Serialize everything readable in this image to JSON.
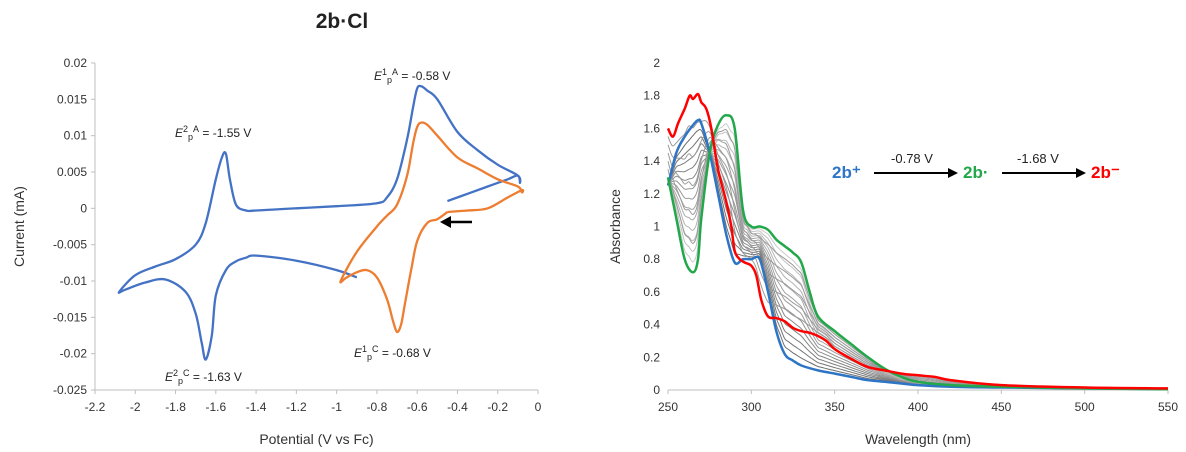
{
  "title": "2b·Cl",
  "chart_data": [
    {
      "type": "line",
      "xlabel": "Potential (V vs Fc)",
      "ylabel": "Current (mA)",
      "xlim": [
        -2.2,
        0
      ],
      "ylim": [
        -0.025,
        0.02
      ],
      "xticks": [
        "-2.2",
        "-2",
        "-1.8",
        "-1.6",
        "-1.4",
        "-1.2",
        "-1",
        "-0.8",
        "-0.6",
        "-0.4",
        "-0.2",
        "0"
      ],
      "yticks": [
        "0.02",
        "0.015",
        "0.01",
        "0.005",
        "0",
        "-0.005",
        "-0.01",
        "-0.015",
        "-0.02",
        "-0.025"
      ],
      "grid": false,
      "series": [
        {
          "color": "#4472c4",
          "x": [
            -0.45,
            -0.35,
            -0.25,
            -0.15,
            -0.1,
            -0.09,
            -0.1,
            -0.2,
            -0.3,
            -0.4,
            -0.5,
            -0.55,
            -0.58,
            -0.6,
            -0.62,
            -0.65,
            -0.7,
            -0.75,
            -0.8,
            -1.0,
            -1.2,
            -1.4,
            -1.45,
            -1.5,
            -1.53,
            -1.55,
            -1.57,
            -1.6,
            -1.65,
            -1.7,
            -1.8,
            -1.9,
            -2.0,
            -2.08,
            -2.05,
            -1.95,
            -1.85,
            -1.75,
            -1.7,
            -1.67,
            -1.65,
            -1.62,
            -1.6,
            -1.55,
            -1.5,
            -1.45,
            -1.4,
            -1.2,
            -1.0,
            -0.9
          ],
          "y": [
            0.001,
            0.002,
            0.003,
            0.004,
            0.0045,
            0.0035,
            0.0045,
            0.006,
            0.008,
            0.0105,
            0.015,
            0.0162,
            0.0168,
            0.0165,
            0.014,
            0.0095,
            0.004,
            0.0015,
            0.0007,
            0.0003,
            0.0,
            -0.0003,
            -0.0003,
            0.0005,
            0.004,
            0.0075,
            0.007,
            0.004,
            -0.002,
            -0.005,
            -0.007,
            -0.008,
            -0.0092,
            -0.0115,
            -0.0112,
            -0.0102,
            -0.0098,
            -0.0115,
            -0.0145,
            -0.0185,
            -0.0208,
            -0.0175,
            -0.012,
            -0.0085,
            -0.0073,
            -0.0068,
            -0.0065,
            -0.0072,
            -0.0085,
            -0.0095
          ]
        },
        {
          "color": "#ed7d31",
          "x": [
            -0.45,
            -0.35,
            -0.25,
            -0.15,
            -0.08,
            -0.08,
            -0.1,
            -0.2,
            -0.3,
            -0.4,
            -0.5,
            -0.55,
            -0.58,
            -0.6,
            -0.62,
            -0.65,
            -0.7,
            -0.75,
            -0.8,
            -0.9,
            -0.98,
            -0.95,
            -0.9,
            -0.85,
            -0.8,
            -0.75,
            -0.72,
            -0.7,
            -0.68,
            -0.66,
            -0.63,
            -0.6,
            -0.55,
            -0.5,
            -0.45
          ],
          "y": [
            -0.0005,
            -0.0003,
            0.0,
            0.0015,
            0.0025,
            0.0022,
            0.003,
            0.004,
            0.0055,
            0.007,
            0.01,
            0.0115,
            0.0118,
            0.0112,
            0.009,
            0.0045,
            0.0005,
            -0.001,
            -0.0025,
            -0.006,
            -0.01,
            -0.0095,
            -0.0088,
            -0.0085,
            -0.0095,
            -0.0125,
            -0.0155,
            -0.017,
            -0.016,
            -0.013,
            -0.0085,
            -0.0045,
            -0.002,
            -0.0015,
            -0.0005
          ]
        }
      ],
      "annotations": [
        {
          "text": "E¹pA = -0.58 V",
          "x": -0.58,
          "y": 0.018
        },
        {
          "text": "E²pA = -1.55 V",
          "x": -1.55,
          "y": 0.0105
        },
        {
          "text": "E¹pC = -0.68 V",
          "x": -0.68,
          "y": -0.0198
        },
        {
          "text": "E²pC = -1.63 V",
          "x": -1.63,
          "y": -0.0228
        }
      ]
    },
    {
      "type": "line",
      "xlabel": "Wavelength (nm)",
      "ylabel": "Absorbance",
      "xlim": [
        250,
        550
      ],
      "ylim": [
        0,
        2
      ],
      "xticks": [
        "250",
        "300",
        "350",
        "400",
        "450",
        "500",
        "550"
      ],
      "yticks": [
        "2",
        "1.8",
        "1.6",
        "1.4",
        "1.2",
        "1",
        "0.8",
        "0.6",
        "0.4",
        "0.2",
        "0"
      ],
      "grid": false,
      "series": [
        {
          "name": "2b⁺",
          "color": "#2e75c6",
          "x": [
            250,
            255,
            260,
            265,
            268,
            270,
            275,
            280,
            285,
            290,
            295,
            300,
            305,
            310,
            315,
            320,
            325,
            330,
            340,
            350,
            360,
            370,
            380,
            390,
            400,
            420,
            450,
            500,
            550
          ],
          "y": [
            1.25,
            1.45,
            1.55,
            1.62,
            1.65,
            1.63,
            1.45,
            1.2,
            0.95,
            0.78,
            0.8,
            0.8,
            0.8,
            0.6,
            0.36,
            0.22,
            0.18,
            0.15,
            0.12,
            0.1,
            0.08,
            0.06,
            0.05,
            0.04,
            0.03,
            0.02,
            0.015,
            0.01,
            0.005
          ]
        },
        {
          "name": "2b·",
          "color": "#22a84a",
          "x": [
            250,
            255,
            260,
            265,
            268,
            270,
            275,
            280,
            285,
            290,
            295,
            300,
            305,
            310,
            315,
            320,
            325,
            330,
            335,
            340,
            350,
            360,
            370,
            380,
            390,
            400,
            420,
            450,
            500,
            550
          ],
          "y": [
            1.3,
            1.05,
            0.8,
            0.72,
            0.8,
            1.05,
            1.45,
            1.62,
            1.68,
            1.6,
            1.1,
            1.0,
            1.0,
            0.98,
            0.92,
            0.88,
            0.84,
            0.78,
            0.6,
            0.45,
            0.36,
            0.28,
            0.2,
            0.13,
            0.08,
            0.05,
            0.03,
            0.02,
            0.01,
            0.005
          ]
        },
        {
          "name": "2b⁻",
          "color": "#ff0000",
          "x": [
            250,
            253,
            256,
            260,
            263,
            265,
            268,
            270,
            273,
            276,
            280,
            285,
            288,
            290,
            293,
            296,
            300,
            303,
            306,
            310,
            315,
            320,
            325,
            330,
            335,
            340,
            345,
            350,
            360,
            370,
            380,
            390,
            400,
            410,
            420,
            450,
            500,
            550
          ],
          "y": [
            1.6,
            1.55,
            1.63,
            1.72,
            1.8,
            1.78,
            1.81,
            1.76,
            1.72,
            1.6,
            1.35,
            1.15,
            1.0,
            0.85,
            0.8,
            0.78,
            0.76,
            0.7,
            0.55,
            0.45,
            0.44,
            0.42,
            0.38,
            0.36,
            0.35,
            0.33,
            0.3,
            0.25,
            0.19,
            0.14,
            0.12,
            0.1,
            0.09,
            0.08,
            0.06,
            0.03,
            0.015,
            0.01
          ]
        }
      ],
      "annotations": [
        {
          "text": "2b⁺",
          "color": "#2e75c6"
        },
        {
          "text": "-0.78 V",
          "color": "#222222"
        },
        {
          "text": "2b·",
          "color": "#22a84a"
        },
        {
          "text": "-1.68 V",
          "color": "#222222"
        },
        {
          "text": "2b⁻",
          "color": "#ff0000"
        }
      ]
    }
  ]
}
